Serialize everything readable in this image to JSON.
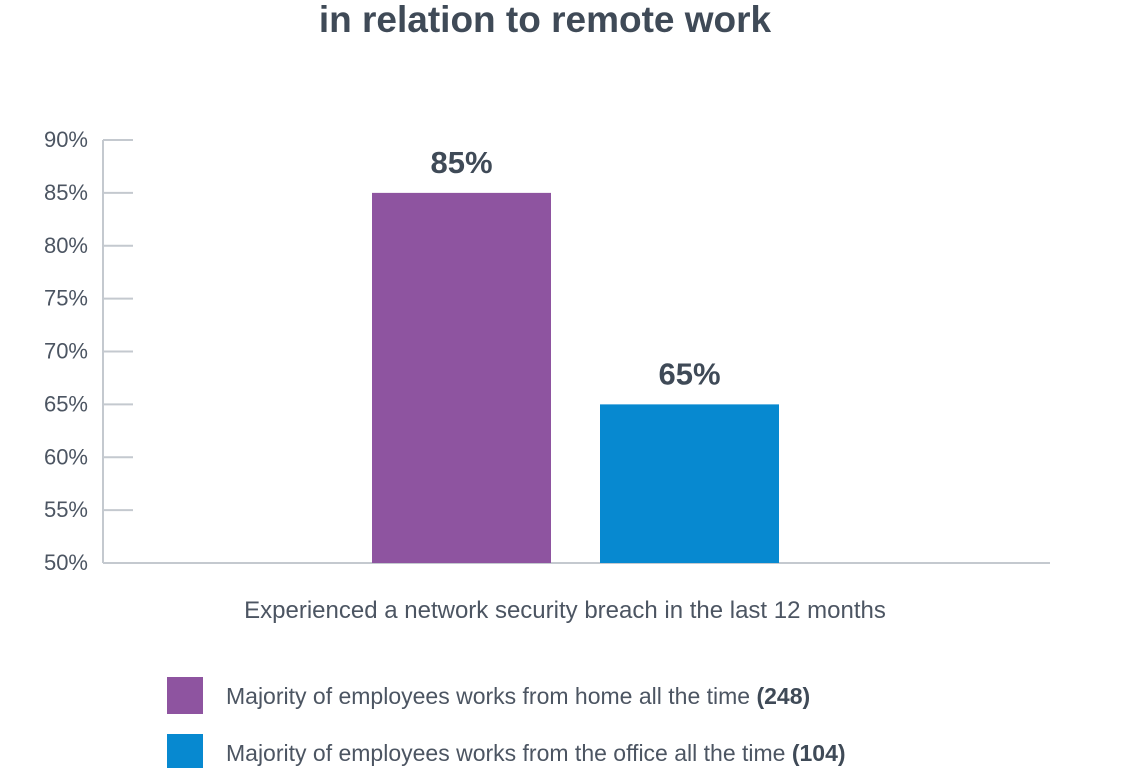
{
  "chart_data": {
    "type": "bar",
    "title": "in relation to remote work",
    "xlabel": "Experienced a network security breach in the last 12 months",
    "ylabel": "",
    "ylim": [
      50,
      90
    ],
    "y_ticks": [
      "50%",
      "55%",
      "60%",
      "65%",
      "70%",
      "75%",
      "80%",
      "85%",
      "90%"
    ],
    "y_tick_values": [
      50,
      55,
      60,
      65,
      70,
      75,
      80,
      85,
      90
    ],
    "categories": [
      "Experienced a network security breach in the last 12 months"
    ],
    "series": [
      {
        "name": "Majority of employees works from home all the time",
        "count": "(248)",
        "values": [
          85
        ],
        "label": "85%",
        "color": "#8e54a0"
      },
      {
        "name": "Majority of employees works from the office all the time",
        "count": "(104)",
        "values": [
          65
        ],
        "label": "65%",
        "color": "#0789d0"
      }
    ],
    "grid": false,
    "legend_position": "bottom-left"
  }
}
